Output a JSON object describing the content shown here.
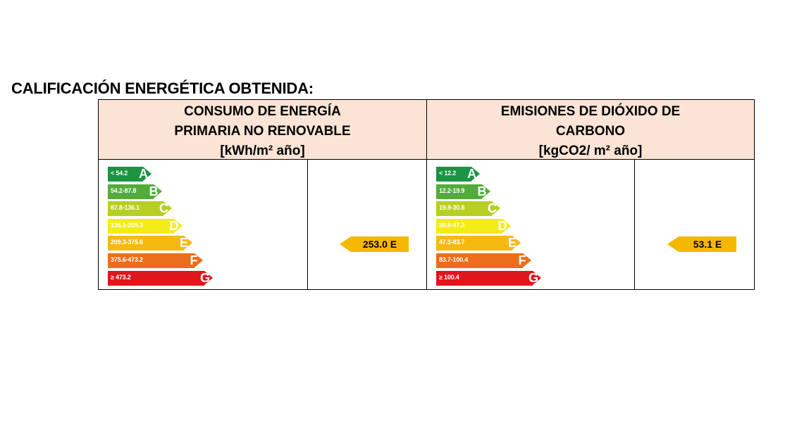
{
  "title": "CALIFICACIÓN ENERGÉTICA OBTENIDA:",
  "consumo": {
    "header": [
      "CONSUMO DE ENERGÍA",
      "PRIMARIA NO RENOVABLE",
      "[kWh/m² año]"
    ],
    "bands": [
      {
        "letter": "A",
        "range": "< 54.2",
        "color": "#1a9342"
      },
      {
        "letter": "B",
        "range": "54.2-87.8",
        "color": "#52ac3b"
      },
      {
        "letter": "C",
        "range": "87.8-136.1",
        "color": "#b6cf20"
      },
      {
        "letter": "D",
        "range": "136.1-209.3",
        "color": "#f3ec18"
      },
      {
        "letter": "E",
        "range": "209.3-375.6",
        "color": "#f5b911"
      },
      {
        "letter": "F",
        "range": "375.6-473.2",
        "color": "#ec6d1a"
      },
      {
        "letter": "G",
        "range": "≥ 473.2",
        "color": "#e0161d"
      }
    ],
    "result": {
      "value": "253.0 E",
      "color": "#f5b800"
    }
  },
  "emisiones": {
    "header": [
      "EMISIONES DE DIÓXIDO DE",
      "CARBONO",
      "[kgCO2/ m² año]"
    ],
    "bands": [
      {
        "letter": "A",
        "range": "< 12.2",
        "color": "#1a9342"
      },
      {
        "letter": "B",
        "range": "12.2-19.9",
        "color": "#52ac3b"
      },
      {
        "letter": "C",
        "range": "19.9-30.8",
        "color": "#b6cf20"
      },
      {
        "letter": "D",
        "range": "30.8-47.3",
        "color": "#f3ec18"
      },
      {
        "letter": "E",
        "range": "47.3-83.7",
        "color": "#f5b911"
      },
      {
        "letter": "F",
        "range": "83.7-100.4",
        "color": "#ec6d1a"
      },
      {
        "letter": "G",
        "range": "≥ 100.4",
        "color": "#e0161d"
      }
    ],
    "result": {
      "value": "53.1 E",
      "color": "#f5b800"
    }
  }
}
